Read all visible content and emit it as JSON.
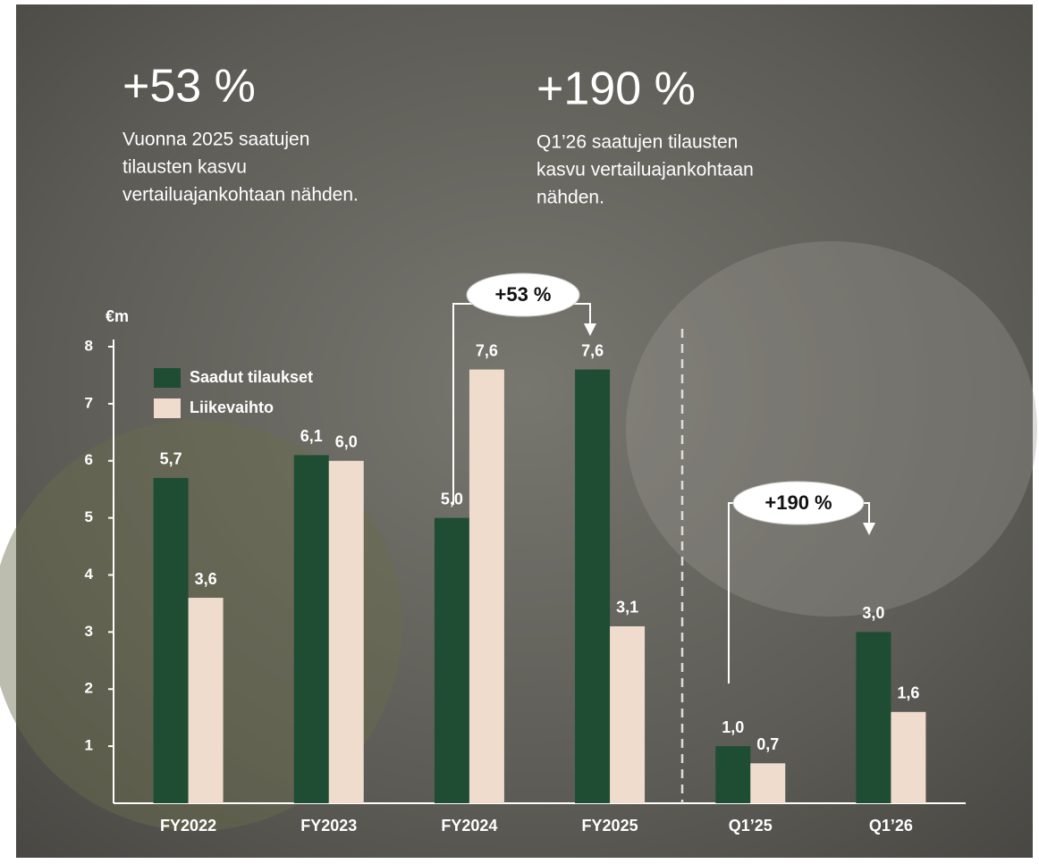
{
  "header": {
    "stats": [
      {
        "value": "+53 %",
        "lines": [
          "Vuonna 2025 saatujen",
          "tilausten kasvu",
          "vertailuajankohtaan nähden."
        ]
      },
      {
        "value": "+190 %",
        "lines": [
          "Q1’26 saatujen tilausten",
          "kasvu vertailuajankohtaan",
          "nähden."
        ]
      }
    ]
  },
  "chart_data": {
    "type": "bar",
    "y_label": "€m",
    "categories": [
      "FY2022",
      "FY2023",
      "FY2024",
      "FY2025",
      "Q1’25",
      "Q1’26"
    ],
    "series": [
      {
        "name": "Saadut tilaukset",
        "color": "#1f4d33",
        "values": [
          5.7,
          6.1,
          5.0,
          7.6,
          1.0,
          3.0
        ],
        "value_labels": [
          "5,7",
          "6,1",
          "5,0",
          "7,6",
          "1,0",
          "3,0"
        ]
      },
      {
        "name": "Liikevaihto",
        "color": "#efdccd",
        "values": [
          3.6,
          6.0,
          7.6,
          3.1,
          0.7,
          1.6
        ],
        "value_labels": [
          "3,6",
          "6,0",
          "7,6",
          "3,1",
          "0,7",
          "1,6"
        ]
      }
    ],
    "ylim": [
      0,
      8
    ],
    "yticks": [
      1,
      2,
      3,
      4,
      5,
      6,
      7,
      8
    ],
    "annotations": [
      "+53 %",
      "+190 %"
    ]
  }
}
